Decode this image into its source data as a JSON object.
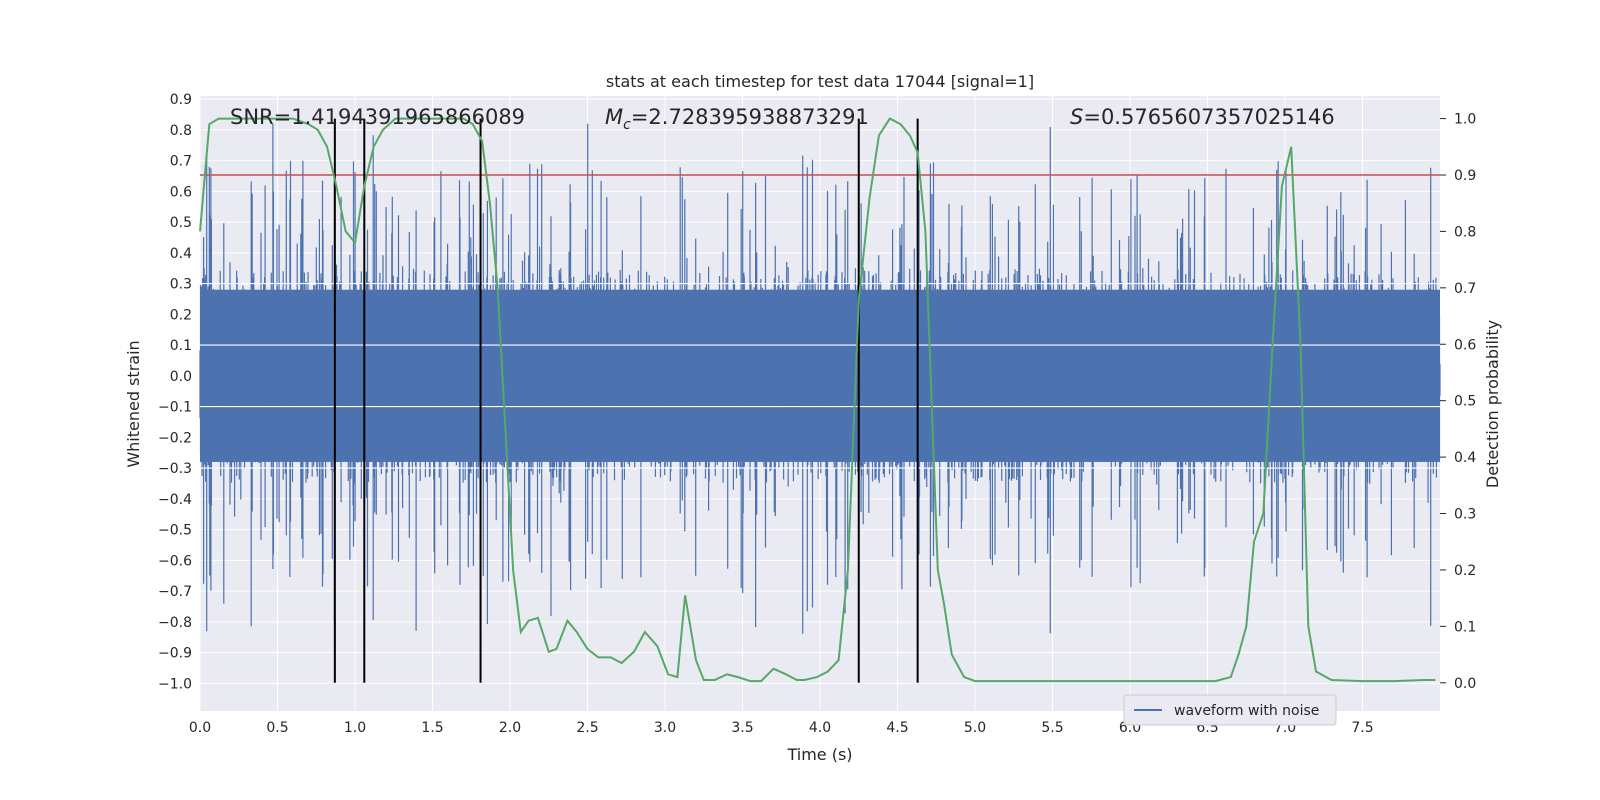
{
  "chart_data": {
    "type": "line",
    "title": "stats at each timestep for test data 17044 [signal=1]",
    "xlabel": "Time (s)",
    "ylabel": "Whitened strain",
    "ylabel_right": "Detection probability",
    "xlim": [
      0,
      8
    ],
    "ylim": [
      -1.09,
      0.91
    ],
    "ylim_right": [
      -0.05,
      1.04
    ],
    "x_ticks": [
      "0.0",
      "0.5",
      "1.0",
      "1.5",
      "2.0",
      "2.5",
      "3.0",
      "3.5",
      "4.0",
      "4.5",
      "5.0",
      "5.5",
      "6.0",
      "6.5",
      "7.0",
      "7.5"
    ],
    "y_ticks": [
      "0.9",
      "0.8",
      "0.7",
      "0.6",
      "0.5",
      "0.4",
      "0.3",
      "0.2",
      "0.1",
      "0.0",
      "−0.1",
      "−0.2",
      "−0.3",
      "−0.4",
      "−0.5",
      "−0.6",
      "−0.7",
      "−0.8",
      "−0.9",
      "−1.0"
    ],
    "y_ticks_right": [
      "1.0",
      "0.9",
      "0.8",
      "0.7",
      "0.6",
      "0.5",
      "0.4",
      "0.3",
      "0.2",
      "0.1",
      "0.0"
    ],
    "annotations": {
      "snr": "SNR=1.4194391965866089",
      "mc_symbol": "M",
      "mc_sub": "c",
      "mc_value": "=2.728395938873291",
      "s_symbol": "S",
      "s_value": "=0.5765607357025146"
    },
    "threshold_right": 0.9,
    "vertical_lines": [
      0.87,
      1.06,
      1.81,
      4.25,
      4.63
    ],
    "legend": {
      "label": "waveform with noise",
      "position": "lower-right"
    },
    "series": [
      {
        "name": "waveform with noise",
        "color": "#4c72b0",
        "axis": "left",
        "style": "noisy-strain",
        "typical_range": [
          -0.35,
          0.35
        ],
        "max": 0.82,
        "min": -1.0
      },
      {
        "name": "",
        "color": "#55a868",
        "axis": "right",
        "x": [
          0,
          0.06,
          0.12,
          0.2,
          0.3,
          0.4,
          0.5,
          0.6,
          0.7,
          0.76,
          0.82,
          0.88,
          0.94,
          1.0,
          1.06,
          1.12,
          1.18,
          1.26,
          1.36,
          1.5,
          1.6,
          1.7,
          1.76,
          1.82,
          1.87,
          1.92,
          1.97,
          2.02,
          2.07,
          2.12,
          2.18,
          2.25,
          2.3,
          2.37,
          2.43,
          2.5,
          2.57,
          2.65,
          2.72,
          2.8,
          2.87,
          2.95,
          3.02,
          3.08,
          3.13,
          3.2,
          3.25,
          3.32,
          3.4,
          3.47,
          3.55,
          3.62,
          3.7,
          3.78,
          3.85,
          3.9,
          3.98,
          4.05,
          4.12,
          4.18,
          4.25,
          4.32,
          4.38,
          4.45,
          4.52,
          4.58,
          4.63,
          4.68,
          4.72,
          4.76,
          4.8,
          4.85,
          4.93,
          5.0,
          5.2,
          5.4,
          5.6,
          5.8,
          6.0,
          6.2,
          6.4,
          6.55,
          6.65,
          6.7,
          6.75,
          6.8,
          6.86,
          6.92,
          6.98,
          7.04,
          7.1,
          7.15,
          7.2,
          7.3,
          7.5,
          7.7,
          7.9,
          7.97
        ],
        "y": [
          0.8,
          0.99,
          1.0,
          1.0,
          1.0,
          1.0,
          1.0,
          1.0,
          0.99,
          0.98,
          0.95,
          0.88,
          0.8,
          0.78,
          0.88,
          0.95,
          0.98,
          1.0,
          1.0,
          1.0,
          1.0,
          1.0,
          0.99,
          0.96,
          0.85,
          0.7,
          0.45,
          0.2,
          0.09,
          0.11,
          0.115,
          0.055,
          0.06,
          0.11,
          0.09,
          0.06,
          0.045,
          0.045,
          0.035,
          0.055,
          0.09,
          0.065,
          0.015,
          0.01,
          0.155,
          0.04,
          0.005,
          0.005,
          0.015,
          0.01,
          0.003,
          0.003,
          0.025,
          0.015,
          0.005,
          0.005,
          0.01,
          0.02,
          0.04,
          0.2,
          0.68,
          0.86,
          0.97,
          1.0,
          0.99,
          0.97,
          0.94,
          0.8,
          0.5,
          0.2,
          0.14,
          0.05,
          0.01,
          0.003,
          0.003,
          0.003,
          0.003,
          0.003,
          0.003,
          0.003,
          0.003,
          0.003,
          0.01,
          0.05,
          0.1,
          0.25,
          0.3,
          0.6,
          0.88,
          0.95,
          0.6,
          0.1,
          0.02,
          0.005,
          0.003,
          0.003,
          0.005,
          0.005
        ]
      }
    ]
  }
}
